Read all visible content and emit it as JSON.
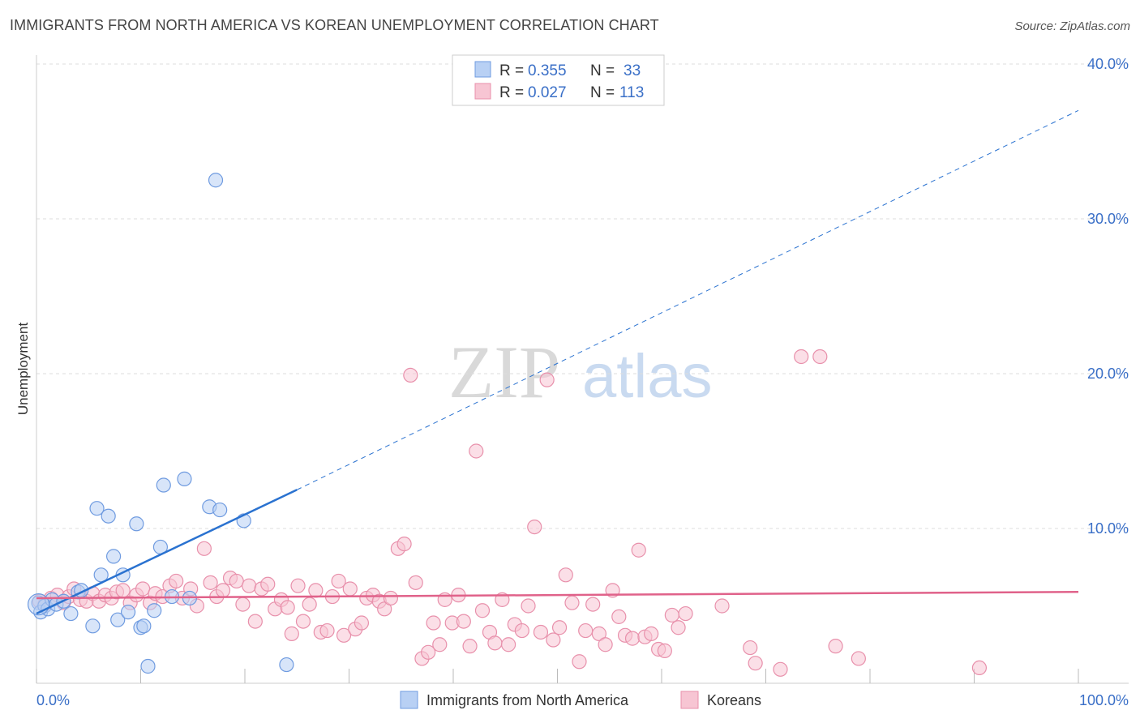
{
  "header": {
    "title": "IMMIGRANTS FROM NORTH AMERICA VS KOREAN UNEMPLOYMENT CORRELATION CHART",
    "source": "Source: ZipAtlas.com"
  },
  "watermark": {
    "zip": "ZIP",
    "atlas": "atlas"
  },
  "colors": {
    "blue_fill": "#b8d0f4",
    "blue_stroke": "#6f9be0",
    "blue_line": "#2a72d0",
    "pink_fill": "#f7c5d3",
    "pink_stroke": "#e890ab",
    "pink_line": "#e0628a",
    "tick_text": "#3a6fc7",
    "grid": "#dddddd"
  },
  "legend": {
    "rows": [
      {
        "r_label": "R =",
        "r_value": "0.355",
        "n_label": "N =",
        "n_value": "33"
      },
      {
        "r_label": "R =",
        "r_value": "0.027",
        "n_label": "N =",
        "n_value": "113"
      }
    ]
  },
  "chart_data": {
    "type": "scatter",
    "title": "IMMIGRANTS FROM NORTH AMERICA VS KOREAN UNEMPLOYMENT CORRELATION CHART",
    "xlabel": "",
    "ylabel": "Unemployment",
    "xlim": [
      0,
      100
    ],
    "ylim": [
      0,
      40
    ],
    "x_tick_labels": [
      "0.0%",
      "100.0%"
    ],
    "y_ticks": [
      10,
      20,
      30,
      40
    ],
    "y_tick_labels": [
      "10.0%",
      "20.0%",
      "30.0%",
      "40.0%"
    ],
    "x_minor_ticks": [
      0,
      10,
      20,
      30,
      40,
      50,
      60,
      70,
      80,
      90,
      100
    ],
    "grid": true,
    "legend_position": "top-center",
    "series": [
      {
        "name": "Immigrants from North America",
        "color": "blue",
        "r": 0.355,
        "n": 33,
        "trend": {
          "x0": 0,
          "y0": 4.5,
          "x1": 25,
          "y1": 12.5,
          "dashed_to_x": 100,
          "dashed_to_y": 37.0
        },
        "points": [
          [
            0.2,
            5.2
          ],
          [
            0.4,
            4.6
          ],
          [
            0.8,
            5.0
          ],
          [
            1.1,
            4.8
          ],
          [
            1.5,
            5.4
          ],
          [
            1.9,
            5.1
          ],
          [
            2.6,
            5.3
          ],
          [
            3.3,
            4.5
          ],
          [
            4.0,
            5.9
          ],
          [
            4.3,
            6.0
          ],
          [
            5.4,
            3.7
          ],
          [
            5.8,
            11.3
          ],
          [
            6.2,
            7.0
          ],
          [
            6.9,
            10.8
          ],
          [
            7.4,
            8.2
          ],
          [
            7.8,
            4.1
          ],
          [
            8.3,
            7.0
          ],
          [
            8.8,
            4.6
          ],
          [
            9.6,
            10.3
          ],
          [
            10.0,
            3.6
          ],
          [
            10.3,
            3.7
          ],
          [
            10.7,
            1.1
          ],
          [
            11.3,
            4.7
          ],
          [
            11.9,
            8.8
          ],
          [
            12.2,
            12.8
          ],
          [
            13.0,
            5.6
          ],
          [
            14.2,
            13.2
          ],
          [
            14.7,
            5.5
          ],
          [
            16.6,
            11.4
          ],
          [
            17.2,
            32.5
          ],
          [
            17.6,
            11.2
          ],
          [
            19.9,
            10.5
          ],
          [
            24.0,
            1.2
          ]
        ]
      },
      {
        "name": "Koreans",
        "color": "pink",
        "r": 0.027,
        "n": 113,
        "trend": {
          "x0": 0,
          "y0": 5.5,
          "x1": 100,
          "y1": 5.9
        },
        "points": [
          [
            0.3,
            5.3
          ],
          [
            0.8,
            5.1
          ],
          [
            1.4,
            5.5
          ],
          [
            2.0,
            5.7
          ],
          [
            2.6,
            5.2
          ],
          [
            3.1,
            5.6
          ],
          [
            3.6,
            6.1
          ],
          [
            4.2,
            5.4
          ],
          [
            4.8,
            5.3
          ],
          [
            5.4,
            5.8
          ],
          [
            6.0,
            5.3
          ],
          [
            6.6,
            5.7
          ],
          [
            7.2,
            5.5
          ],
          [
            7.7,
            5.9
          ],
          [
            8.3,
            6.0
          ],
          [
            9.0,
            5.2
          ],
          [
            9.6,
            5.7
          ],
          [
            10.2,
            6.1
          ],
          [
            10.9,
            5.2
          ],
          [
            11.4,
            5.8
          ],
          [
            12.1,
            5.6
          ],
          [
            12.8,
            6.3
          ],
          [
            13.4,
            6.6
          ],
          [
            14.0,
            5.5
          ],
          [
            14.8,
            6.1
          ],
          [
            15.4,
            5.0
          ],
          [
            16.1,
            8.7
          ],
          [
            16.7,
            6.5
          ],
          [
            17.3,
            5.6
          ],
          [
            17.9,
            6.0
          ],
          [
            18.6,
            6.8
          ],
          [
            19.2,
            6.6
          ],
          [
            19.8,
            5.1
          ],
          [
            20.4,
            6.3
          ],
          [
            21.0,
            4.0
          ],
          [
            21.6,
            6.1
          ],
          [
            22.2,
            6.4
          ],
          [
            22.9,
            4.8
          ],
          [
            23.5,
            5.4
          ],
          [
            24.1,
            4.9
          ],
          [
            24.5,
            3.2
          ],
          [
            25.1,
            6.3
          ],
          [
            25.6,
            4.0
          ],
          [
            26.2,
            5.1
          ],
          [
            26.8,
            6.0
          ],
          [
            27.3,
            3.3
          ],
          [
            27.9,
            3.4
          ],
          [
            28.4,
            5.6
          ],
          [
            29.0,
            6.6
          ],
          [
            29.5,
            3.1
          ],
          [
            30.1,
            6.1
          ],
          [
            30.6,
            3.5
          ],
          [
            31.2,
            3.9
          ],
          [
            31.7,
            5.5
          ],
          [
            32.3,
            5.7
          ],
          [
            32.9,
            5.3
          ],
          [
            33.4,
            4.8
          ],
          [
            34.0,
            5.5
          ],
          [
            34.7,
            8.7
          ],
          [
            35.3,
            9.0
          ],
          [
            35.9,
            19.9
          ],
          [
            36.4,
            6.5
          ],
          [
            37.0,
            1.6
          ],
          [
            37.6,
            2.0
          ],
          [
            38.1,
            3.9
          ],
          [
            38.7,
            2.5
          ],
          [
            39.2,
            5.4
          ],
          [
            39.9,
            3.9
          ],
          [
            40.5,
            5.7
          ],
          [
            41.0,
            4.0
          ],
          [
            41.6,
            2.4
          ],
          [
            42.2,
            15.0
          ],
          [
            42.8,
            4.7
          ],
          [
            43.5,
            3.3
          ],
          [
            44.0,
            2.6
          ],
          [
            44.7,
            5.4
          ],
          [
            45.3,
            2.5
          ],
          [
            45.9,
            3.8
          ],
          [
            46.6,
            3.4
          ],
          [
            47.2,
            5.0
          ],
          [
            47.8,
            10.1
          ],
          [
            48.4,
            3.3
          ],
          [
            49.0,
            19.6
          ],
          [
            49.6,
            2.8
          ],
          [
            50.2,
            3.6
          ],
          [
            50.8,
            7.0
          ],
          [
            51.4,
            5.2
          ],
          [
            52.1,
            1.4
          ],
          [
            52.7,
            3.4
          ],
          [
            53.4,
            5.1
          ],
          [
            54.0,
            3.2
          ],
          [
            54.6,
            2.5
          ],
          [
            55.3,
            6.0
          ],
          [
            55.9,
            4.3
          ],
          [
            56.5,
            3.1
          ],
          [
            57.2,
            2.9
          ],
          [
            57.8,
            8.6
          ],
          [
            58.4,
            3.0
          ],
          [
            59.0,
            3.2
          ],
          [
            59.7,
            2.2
          ],
          [
            60.3,
            2.1
          ],
          [
            61.0,
            4.4
          ],
          [
            61.6,
            3.6
          ],
          [
            62.3,
            4.5
          ],
          [
            65.8,
            5.0
          ],
          [
            68.5,
            2.3
          ],
          [
            69.0,
            1.3
          ],
          [
            71.4,
            0.9
          ],
          [
            73.4,
            21.1
          ],
          [
            75.2,
            21.1
          ],
          [
            76.7,
            2.4
          ],
          [
            78.9,
            1.6
          ],
          [
            90.5,
            1.0
          ]
        ]
      }
    ]
  },
  "bottom_legend": {
    "items": [
      {
        "label": "Immigrants from North America"
      },
      {
        "label": "Koreans"
      }
    ]
  }
}
